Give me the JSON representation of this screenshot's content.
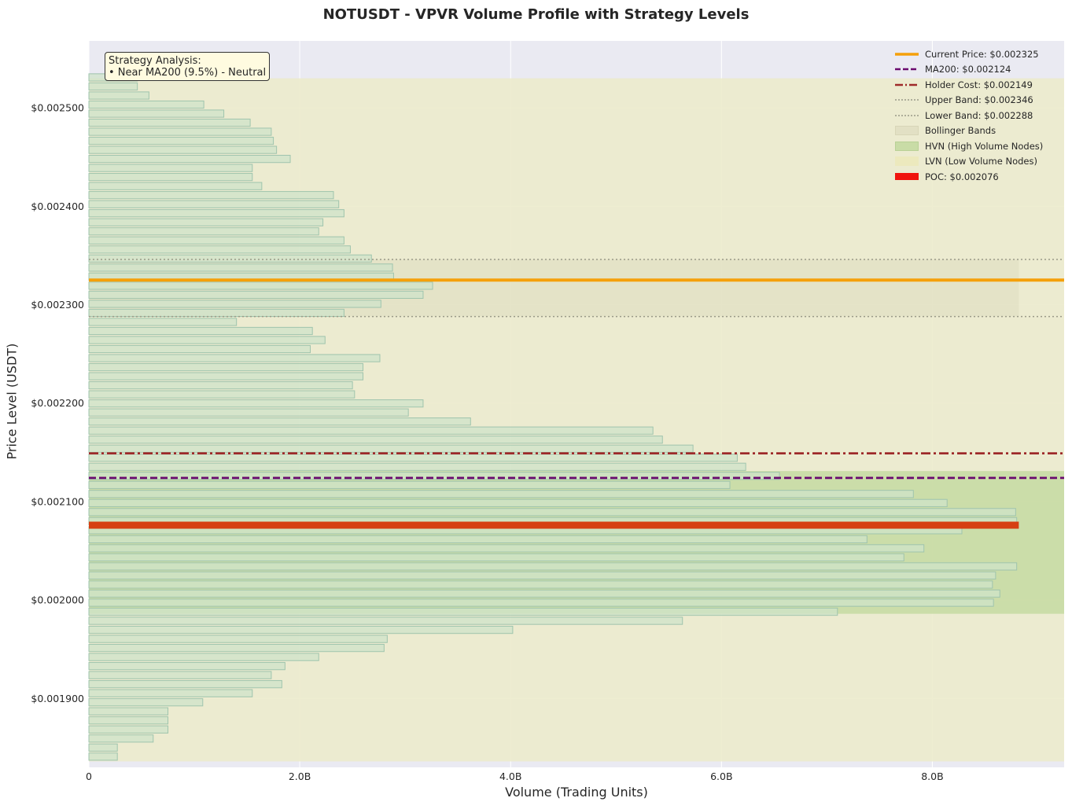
{
  "chart_data": {
    "type": "bar",
    "orientation": "horizontal",
    "title": "NOTUSDT - VPVR Volume Profile with Strategy Levels",
    "xlabel": "Volume (Trading Units)",
    "ylabel": "Price Level (USDT)",
    "xlim": [
      0,
      9.25
    ],
    "ylim": [
      0.00183,
      0.002568
    ],
    "grid": true,
    "legend_position": "top-right",
    "x_ticks": [
      {
        "value": 0,
        "label": "0"
      },
      {
        "value": 2,
        "label": "2.0B"
      },
      {
        "value": 4,
        "label": "4.0B"
      },
      {
        "value": 6,
        "label": "6.0B"
      },
      {
        "value": 8,
        "label": "8.0B"
      }
    ],
    "y_ticks": [
      {
        "value": 0.0019,
        "label": "$0.001900"
      },
      {
        "value": 0.002,
        "label": "$0.002000"
      },
      {
        "value": 0.0021,
        "label": "$0.002100"
      },
      {
        "value": 0.0022,
        "label": "$0.002200"
      },
      {
        "value": 0.0023,
        "label": "$0.002300"
      },
      {
        "value": 0.0024,
        "label": "$0.002400"
      },
      {
        "value": 0.0025,
        "label": "$0.002500"
      }
    ],
    "bin_height": 9.2e-06,
    "price_bins": [
      0.0018409,
      0.0018501,
      0.0018593,
      0.0018685,
      0.0018777,
      0.0018869,
      0.0018961,
      0.0019053,
      0.0019145,
      0.0019237,
      0.0019329,
      0.0019421,
      0.0019513,
      0.0019605,
      0.0019697,
      0.0019789,
      0.0019881,
      0.0019973,
      0.0020065,
      0.0020157,
      0.0020249,
      0.0020341,
      0.0020433,
      0.0020525,
      0.0020617,
      0.0020709,
      0.0020801,
      0.0020893,
      0.0020985,
      0.0021077,
      0.0021169,
      0.0021261,
      0.0021353,
      0.0021445,
      0.0021537,
      0.0021629,
      0.0021721,
      0.0021813,
      0.0021905,
      0.0021997,
      0.0022089,
      0.0022181,
      0.0022273,
      0.0022365,
      0.0022457,
      0.0022549,
      0.0022641,
      0.0022733,
      0.0022825,
      0.0022917,
      0.0023009,
      0.0023101,
      0.0023193,
      0.0023285,
      0.0023377,
      0.0023469,
      0.0023561,
      0.0023653,
      0.0023745,
      0.0023837,
      0.0023929,
      0.0024021,
      0.0024113,
      0.0024205,
      0.0024297,
      0.0024389,
      0.0024481,
      0.0024573,
      0.0024665,
      0.0024757,
      0.0024849,
      0.0024941,
      0.0025033,
      0.0025125,
      0.0025217,
      0.0025309
    ],
    "volumes": [
      0.27,
      0.27,
      0.61,
      0.75,
      0.75,
      0.75,
      1.08,
      1.55,
      1.83,
      1.73,
      1.86,
      2.18,
      2.8,
      2.83,
      4.02,
      5.63,
      7.1,
      8.58,
      8.64,
      8.57,
      8.6,
      8.8,
      7.73,
      7.92,
      7.38,
      8.28,
      8.8,
      8.79,
      8.14,
      7.82,
      6.08,
      6.55,
      6.23,
      6.15,
      5.73,
      5.44,
      5.35,
      3.62,
      3.03,
      3.17,
      2.52,
      2.5,
      2.6,
      2.6,
      2.76,
      2.1,
      2.24,
      2.12,
      1.4,
      2.42,
      2.77,
      3.17,
      3.26,
      2.89,
      2.88,
      2.68,
      2.48,
      2.42,
      2.18,
      2.22,
      2.42,
      2.37,
      2.32,
      1.64,
      1.55,
      1.55,
      1.91,
      1.78,
      1.75,
      1.73,
      1.53,
      1.28,
      1.09,
      0.57,
      0.46,
      0.46
    ],
    "hvn_range": [
      0.001986,
      0.002131
    ],
    "lvn_range": [
      0.001836,
      0.00253
    ],
    "bollinger": {
      "upper": 0.002346,
      "lower": 0.002288,
      "x_end": 8.82
    },
    "poc": 0.002076,
    "poc_volume": 8.82,
    "lines": [
      {
        "name": "Current Price",
        "value": 0.002325,
        "color": "#f5a00a",
        "style": "solid"
      },
      {
        "name": "MA200",
        "value": 0.002124,
        "color": "#6a0a6e",
        "style": "dashed"
      },
      {
        "name": "Holder Cost",
        "value": 0.002149,
        "color": "#9e2a2a",
        "style": "dashdot"
      },
      {
        "name": "Upper Band",
        "value": 0.002346,
        "color": "#9a9a88",
        "style": "dotted"
      },
      {
        "name": "Lower Band",
        "value": 0.002288,
        "color": "#9a9a88",
        "style": "dotted"
      }
    ],
    "colors": {
      "background": "#eaeaf2",
      "bar_fill": "#cfe3c9",
      "bar_edge": "#9fc4ad",
      "hvn": "#c9dca6",
      "lvn": "#ecebcc",
      "bollinger": "#e2e0c4",
      "poc": "#d63f12"
    }
  },
  "title": "NOTUSDT - VPVR Volume Profile with Strategy Levels",
  "annotation": {
    "line1": "Strategy Analysis:",
    "line2": "• Near MA200 (9.5%) - Neutral"
  },
  "legend": {
    "current_price": "Current Price: $0.002325",
    "ma200": "MA200: $0.002124",
    "holder_cost": "Holder Cost: $0.002149",
    "upper_band": "Upper Band: $0.002346",
    "lower_band": "Lower Band: $0.002288",
    "bollinger": "Bollinger Bands",
    "hvn": "HVN (High Volume Nodes)",
    "lvn": "LVN (Low Volume Nodes)",
    "poc": "POC: $0.002076"
  },
  "axes": {
    "xlabel": "Volume (Trading Units)",
    "ylabel": "Price Level (USDT)"
  }
}
